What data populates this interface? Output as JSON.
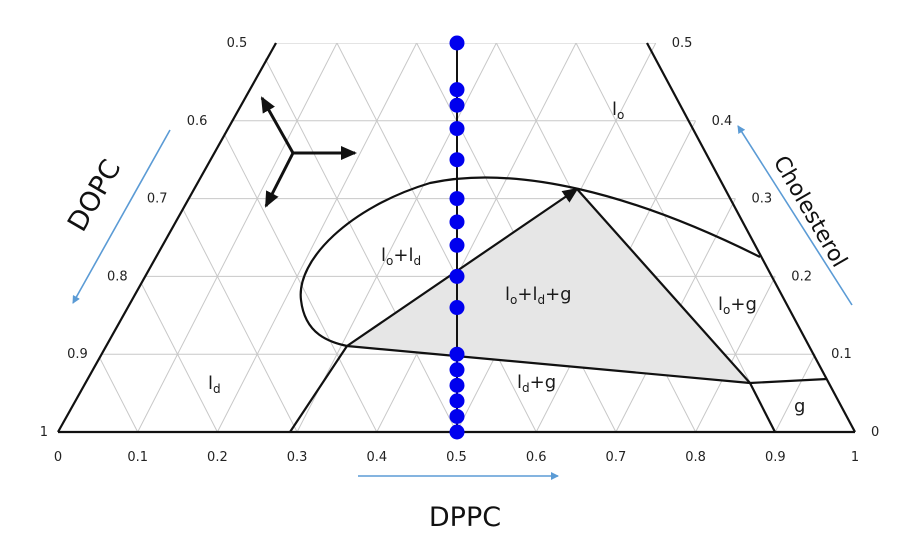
{
  "colors": {
    "background": "#ffffff",
    "grid": "#c8c8c8",
    "lines": "#111111",
    "shaded_region": "#e6e6e6",
    "points": "#0000ee",
    "axis_arrows": "#5b9bd5"
  },
  "axes": {
    "bottom": {
      "label": "DPPC",
      "ticks": [
        "0",
        "0.1",
        "0.2",
        "0.3",
        "0.4",
        "0.5",
        "0.6",
        "0.7",
        "0.8",
        "0.9",
        "1"
      ]
    },
    "left": {
      "label": "DOPC",
      "ticks": [
        "1",
        "0.9",
        "0.8",
        "0.7",
        "0.6",
        "0.5"
      ]
    },
    "right": {
      "label": "Cholesterol",
      "ticks": [
        "0",
        "0.1",
        "0.2",
        "0.3",
        "0.4",
        "0.5"
      ]
    }
  },
  "regions": {
    "lo": "l",
    "lo_sub": "o",
    "lold_a": "l",
    "lold_b": "o",
    "lold_c": "+l",
    "lold_d": "d",
    "loldg_a": "l",
    "loldg_b": "o",
    "loldg_c": "+l",
    "loldg_d": "d",
    "loldg_e": "+g",
    "log_a": "l",
    "log_b": "o",
    "log_c": "+g",
    "ld": "l",
    "ld_sub": "d",
    "ldg_a": "l",
    "ldg_b": "d",
    "ldg_c": "+g",
    "g": "g"
  },
  "chart_data": {
    "type": "ternary",
    "components": [
      "DPPC",
      "DOPC",
      "Cholesterol"
    ],
    "scan_line": {
      "DPPC": 0.5,
      "description": "vertical composition path"
    },
    "scan_points_cholesterol": [
      0.0,
      0.02,
      0.04,
      0.06,
      0.08,
      0.1,
      0.16,
      0.2,
      0.24,
      0.27,
      0.3,
      0.35,
      0.39,
      0.42,
      0.44,
      0.5
    ],
    "phase_boundary_lines": [
      {
        "name": "lo+ld+g triangle",
        "vertices": [
          [
            0.36,
            0.12
          ],
          [
            0.64,
            0.37
          ],
          [
            0.87,
            0.07
          ]
        ]
      },
      {
        "name": "left boundary",
        "points": [
          [
            0.28,
            0.0
          ],
          [
            0.36,
            0.12
          ]
        ]
      },
      {
        "name": "bottom boundary",
        "points": [
          [
            0.36,
            0.12
          ],
          [
            0.87,
            0.07
          ],
          [
            0.97,
            0.08
          ]
        ]
      },
      {
        "name": "right boundary",
        "points": [
          [
            0.87,
            0.07
          ],
          [
            0.9,
            0.0
          ]
        ]
      }
    ],
    "regions": [
      "lo",
      "lo+ld",
      "lo+ld+g",
      "lo+g",
      "ld",
      "ld+g",
      "g"
    ]
  }
}
